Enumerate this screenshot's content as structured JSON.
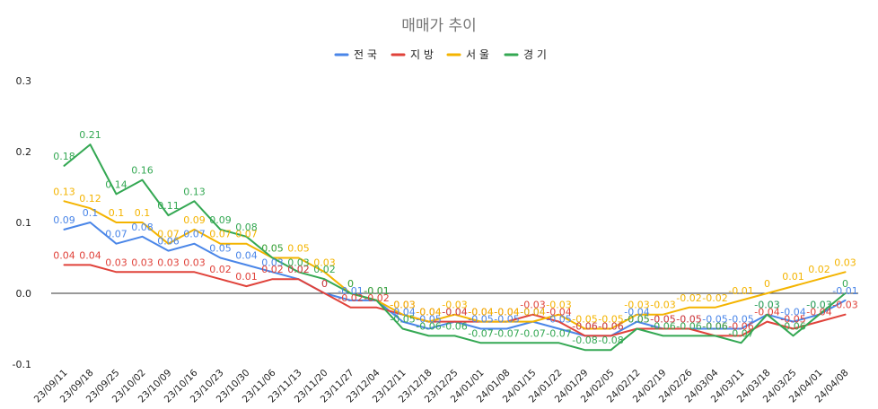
{
  "chart_data": {
    "type": "line",
    "title": "매매가 추이",
    "xlabel": "",
    "ylabel": "",
    "ylim": [
      -0.1,
      0.3
    ],
    "yticks": [
      "-0.1",
      "0.0",
      "0.1",
      "0.2",
      "0.3"
    ],
    "grid": "horizontal-zero-line",
    "legend_position": "top",
    "categories": [
      "23/09/11",
      "23/09/18",
      "23/09/25",
      "23/10/02",
      "23/10/09",
      "23/10/16",
      "23/10/23",
      "23/10/30",
      "23/11/06",
      "23/11/13",
      "23/11/20",
      "23/11/27",
      "23/12/04",
      "23/12/11",
      "23/12/18",
      "23/12/25",
      "24/01/01",
      "24/01/08",
      "24/01/15",
      "24/01/22",
      "24/01/29",
      "24/02/05",
      "24/02/12",
      "24/02/19",
      "24/02/26",
      "24/03/04",
      "24/03/11",
      "24/03/18",
      "24/03/25",
      "24/04/01",
      "24/04/08"
    ],
    "series": [
      {
        "name": "전국",
        "color": "#4a86e8",
        "values": [
          0.09,
          0.1,
          0.07,
          0.08,
          0.06,
          0.07,
          0.05,
          0.04,
          0.03,
          0.02,
          0,
          -0.01,
          -0.01,
          -0.04,
          -0.05,
          -0.04,
          -0.05,
          -0.05,
          -0.04,
          -0.05,
          -0.06,
          -0.06,
          -0.04,
          -0.05,
          -0.05,
          -0.05,
          -0.05,
          -0.03,
          -0.04,
          -0.03,
          -0.01
        ]
      },
      {
        "name": "지방",
        "color": "#e0423a",
        "values": [
          0.04,
          0.04,
          0.03,
          0.03,
          0.03,
          0.03,
          0.02,
          0.01,
          0.02,
          0.02,
          0,
          -0.02,
          -0.02,
          -0.03,
          -0.04,
          -0.04,
          -0.04,
          -0.04,
          -0.03,
          -0.04,
          -0.06,
          -0.06,
          -0.05,
          -0.05,
          -0.05,
          -0.06,
          -0.06,
          -0.04,
          -0.05,
          -0.04,
          -0.03
        ]
      },
      {
        "name": "서울",
        "color": "#f4b400",
        "values": [
          0.13,
          0.12,
          0.1,
          0.1,
          0.07,
          0.09,
          0.07,
          0.07,
          0.05,
          0.05,
          0.03,
          0,
          -0.01,
          -0.03,
          -0.04,
          -0.03,
          -0.04,
          -0.04,
          -0.04,
          -0.03,
          -0.05,
          -0.05,
          -0.03,
          -0.03,
          -0.02,
          -0.02,
          -0.01,
          0,
          0.01,
          0.02,
          0.03
        ]
      },
      {
        "name": "경기",
        "color": "#34a853",
        "values": [
          0.18,
          0.21,
          0.14,
          0.16,
          0.11,
          0.13,
          0.09,
          0.08,
          0.05,
          0.03,
          0.02,
          0,
          -0.01,
          -0.05,
          -0.06,
          -0.06,
          -0.07,
          -0.07,
          -0.07,
          -0.07,
          -0.08,
          -0.08,
          -0.05,
          -0.06,
          -0.06,
          -0.06,
          -0.07,
          -0.03,
          -0.06,
          -0.03,
          0
        ]
      }
    ]
  }
}
